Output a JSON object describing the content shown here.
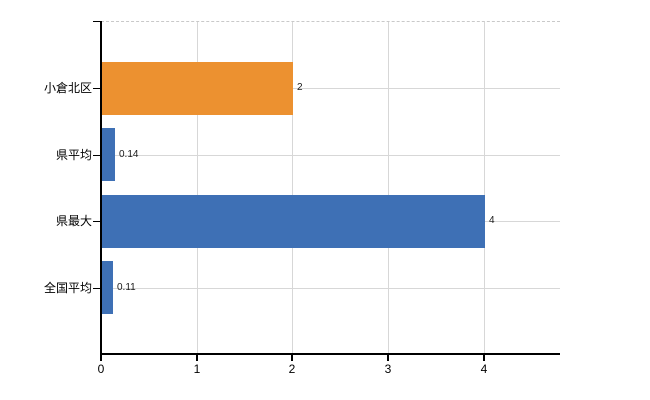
{
  "chart_data": {
    "type": "bar",
    "orientation": "horizontal",
    "title": "",
    "categories": [
      "小倉北区",
      "県平均",
      "県最大",
      "全国平均"
    ],
    "values": [
      2,
      0.14,
      4,
      0.11
    ],
    "value_labels": [
      "2",
      "0.14",
      "4",
      "0.11"
    ],
    "bar_colors": [
      "#ec9130",
      "#3e70b5",
      "#3e70b5",
      "#3e70b5"
    ],
    "x_ticks": [
      "0",
      "1",
      "2",
      "3",
      "4"
    ],
    "x_tick_values": [
      0,
      1,
      2,
      3,
      4
    ],
    "xlim": [
      0,
      4.8
    ],
    "grid": true,
    "legend": false,
    "colors": {
      "highlight_bar": "#ec9130",
      "default_bar": "#3e70b5",
      "gridline": "#d7d7d7",
      "axis": "#000000",
      "background": "#ffffff"
    }
  }
}
